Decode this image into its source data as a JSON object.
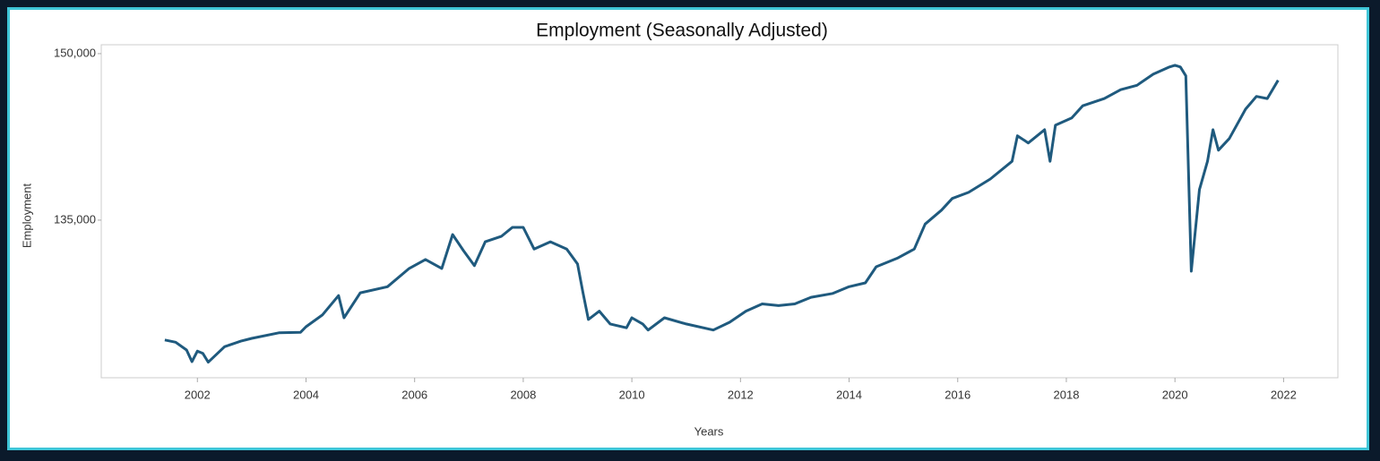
{
  "chart_data": {
    "type": "line",
    "title": "Employment (Seasonally Adjusted)",
    "x_label": "Years",
    "y_label": "Employment",
    "xlim": [
      2000.23,
      2023.0
    ],
    "xticks": [
      2002,
      2004,
      2006,
      2008,
      2010,
      2012,
      2014,
      2016,
      2018,
      2020,
      2022
    ],
    "ylim": [
      120800,
      150800
    ],
    "yticks": [
      {
        "value": 135000,
        "label": "135,000"
      },
      {
        "value": 150000,
        "label": "150,000"
      }
    ],
    "grid": false,
    "x": [
      2001.4,
      2001.6,
      2001.8,
      2001.9,
      2002.0,
      2002.1,
      2002.2,
      2002.5,
      2002.8,
      2003.0,
      2003.5,
      2003.9,
      2004.0,
      2004.3,
      2004.6,
      2004.7,
      2005.0,
      2005.5,
      2005.9,
      2006.2,
      2006.5,
      2006.7,
      2006.9,
      2007.1,
      2007.3,
      2007.6,
      2007.8,
      2008.0,
      2008.2,
      2008.5,
      2008.8,
      2009.0,
      2009.1,
      2009.2,
      2009.4,
      2009.6,
      2009.9,
      2010.0,
      2010.2,
      2010.3,
      2010.6,
      2011.0,
      2011.5,
      2011.8,
      2012.1,
      2012.4,
      2012.7,
      2013.0,
      2013.3,
      2013.7,
      2014.0,
      2014.3,
      2014.5,
      2014.9,
      2015.2,
      2015.4,
      2015.7,
      2015.9,
      2016.2,
      2016.6,
      2017.0,
      2017.1,
      2017.3,
      2017.6,
      2017.7,
      2017.8,
      2018.1,
      2018.3,
      2018.7,
      2019.0,
      2019.3,
      2019.6,
      2019.9,
      2020.0,
      2020.1,
      2020.2,
      2020.3,
      2020.45,
      2020.6,
      2020.7,
      2020.8,
      2021.0,
      2021.3,
      2021.5,
      2021.7,
      2021.9
    ],
    "series": [
      {
        "name": "Employment",
        "color": "#1f5a7e",
        "values": [
          124200,
          124000,
          123300,
          122250,
          123200,
          123000,
          122200,
          123600,
          124100,
          124350,
          124850,
          124900,
          125400,
          126450,
          128200,
          126200,
          128450,
          129000,
          130650,
          131450,
          130650,
          133700,
          132250,
          130900,
          133050,
          133550,
          134350,
          134350,
          132400,
          133050,
          132400,
          131050,
          128450,
          126050,
          126800,
          125650,
          125300,
          126200,
          125650,
          125100,
          126200,
          125650,
          125100,
          125800,
          126800,
          127450,
          127300,
          127450,
          128050,
          128400,
          129000,
          129350,
          130800,
          131600,
          132400,
          134650,
          135900,
          136950,
          137500,
          138700,
          140300,
          142600,
          141950,
          143150,
          140300,
          143550,
          144200,
          145300,
          145950,
          146750,
          147150,
          148150,
          148800,
          148950,
          148800,
          148000,
          130400,
          137750,
          140300,
          143150,
          141300,
          142350,
          145000,
          146150,
          145950,
          147600
        ]
      }
    ]
  }
}
